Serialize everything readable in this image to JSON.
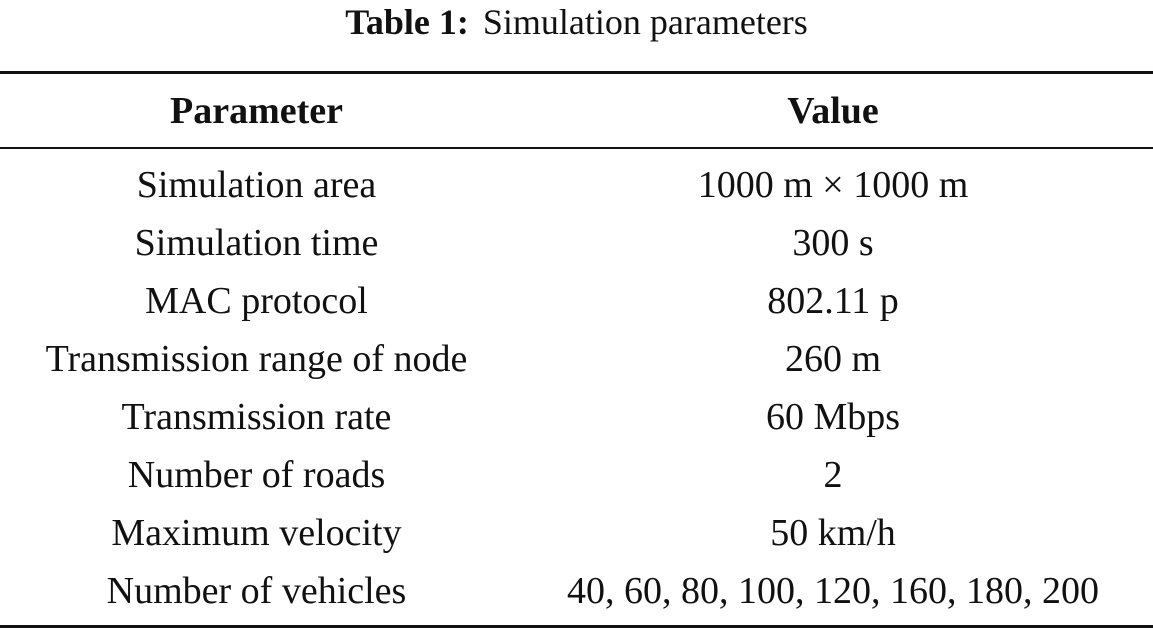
{
  "caption": {
    "label": "Table 1:",
    "title": "Simulation parameters"
  },
  "table": {
    "headers": [
      "Parameter",
      "Value"
    ],
    "rows": [
      [
        "Simulation area",
        "1000 m × 1000 m"
      ],
      [
        "Simulation time",
        "300 s"
      ],
      [
        "MAC protocol",
        "802.11 p"
      ],
      [
        "Transmission range of node",
        "260 m"
      ],
      [
        "Transmission rate",
        "60 Mbps"
      ],
      [
        "Number of roads",
        "2"
      ],
      [
        "Maximum velocity",
        "50 km/h"
      ],
      [
        "Number of vehicles",
        "40, 60, 80, 100, 120, 160, 180, 200"
      ]
    ]
  }
}
